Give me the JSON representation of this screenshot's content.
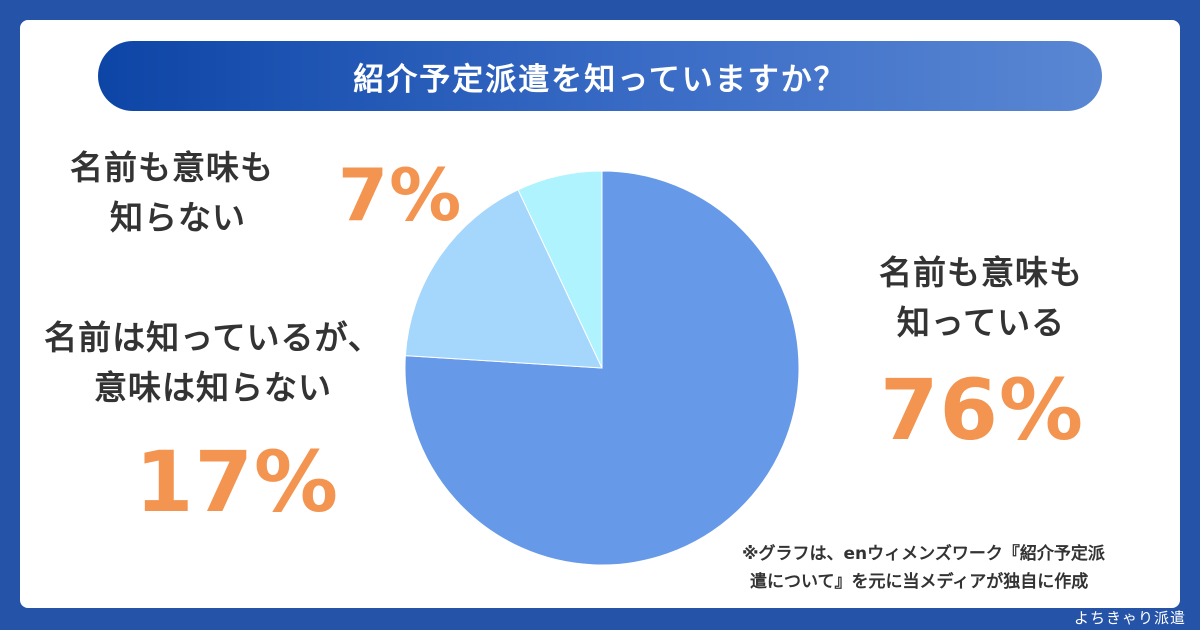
{
  "title": "紹介予定派遣を知っていますか？",
  "labels": {
    "small_line1": "名前も意味も",
    "small_line2": "知らない",
    "mid_line1": "名前は知っているが、",
    "mid_line2": "意味は知らない",
    "big_line1": "名前も意味も",
    "big_line2": "知っている"
  },
  "percent_text": {
    "small": "7%",
    "mid": "17%",
    "big": "76%"
  },
  "note_line1": "※グラフは、enウィメンズワーク『紹介予定派",
  "note_line2": "遣について』を元に当メディアが独自に作成",
  "credit": "よちきゃり派遣",
  "colors": {
    "background": "#2453a7",
    "accent_percent": "#f39450",
    "slice_big": "#6699e8",
    "slice_mid": "#a5d6fc",
    "slice_small": "#aef3fe"
  },
  "chart_data": {
    "type": "pie",
    "title": "紹介予定派遣を知っていますか？",
    "categories": [
      "名前も意味も知っている",
      "名前は知っているが、意味は知らない",
      "名前も意味も知らない"
    ],
    "values": [
      76,
      17,
      7
    ],
    "colors": [
      "#6699e8",
      "#a5d6fc",
      "#aef3fe"
    ],
    "start": "12 o'clock",
    "direction": "clockwise"
  }
}
